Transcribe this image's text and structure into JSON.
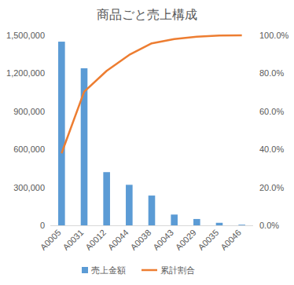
{
  "chart_data": {
    "type": "bar",
    "title": "商品ごと売上構成",
    "categories": [
      "A0005",
      "A0031",
      "A0012",
      "A0044",
      "A0038",
      "A0043",
      "A0029",
      "A0035",
      "A0046"
    ],
    "series": [
      {
        "name": "売上金額",
        "type": "bar",
        "color": "#5b9bd5",
        "values": [
          1450000,
          1240000,
          420000,
          320000,
          235000,
          85000,
          50000,
          20000,
          5000
        ]
      },
      {
        "name": "累計割合",
        "type": "line",
        "color": "#ed7d31",
        "axis": "y2",
        "values": [
          37.9,
          70.3,
          81.3,
          89.7,
          95.8,
          98.0,
          99.3,
          99.9,
          100.0
        ]
      }
    ],
    "ylim": [
      0,
      1500000
    ],
    "yticks": [
      0,
      {
        "value": 300000,
        "label": "300,000"
      },
      {
        "value": 600000,
        "label": "600,000"
      },
      {
        "value": 900000,
        "label": "900,000"
      },
      {
        "value": 1200000,
        "label": "1,200,000"
      },
      {
        "value": 1500000,
        "label": "1,500,000"
      }
    ],
    "y2lim": [
      0,
      100
    ],
    "y2ticks": [
      {
        "value": 0,
        "label": "0.0%"
      },
      {
        "value": 20,
        "label": "20.0%"
      },
      {
        "value": 40,
        "label": "40.0%"
      },
      {
        "value": 60,
        "label": "60.0%"
      },
      {
        "value": 80,
        "label": "80.0%"
      },
      {
        "value": 100,
        "label": "100.0%"
      }
    ],
    "grid": false,
    "legend": "bottom"
  }
}
